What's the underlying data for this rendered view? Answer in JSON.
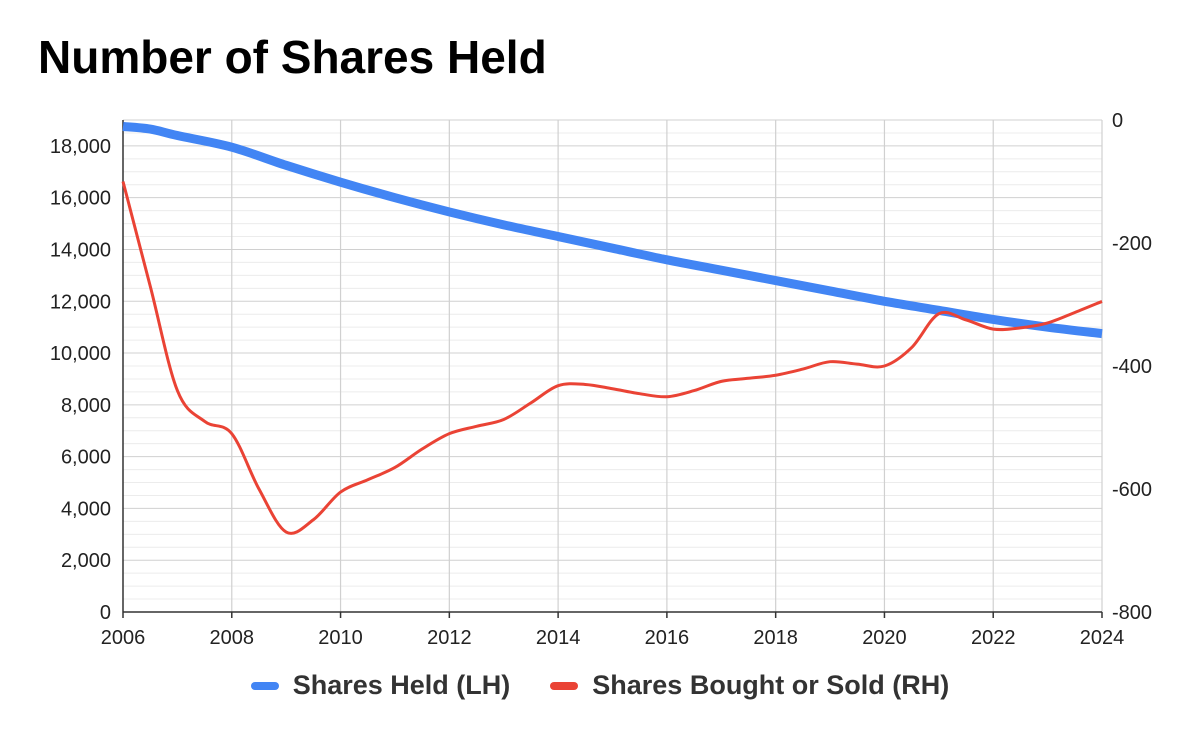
{
  "chart_data": {
    "type": "line",
    "title": "Number of Shares Held",
    "xlabel": "",
    "ylabel": "",
    "x_ticks": [
      "2006",
      "2008",
      "2010",
      "2012",
      "2014",
      "2016",
      "2018",
      "2020",
      "2022",
      "2024"
    ],
    "y_left": {
      "lim": [
        0,
        19000
      ],
      "ticks": [
        0,
        2000,
        4000,
        6000,
        8000,
        10000,
        12000,
        14000,
        16000,
        18000
      ],
      "tick_labels": [
        "0",
        "2,000",
        "4,000",
        "6,000",
        "8,000",
        "10,000",
        "12,000",
        "14,000",
        "16,000",
        "18,000"
      ]
    },
    "y_right": {
      "lim": [
        -800,
        0
      ],
      "ticks": [
        0,
        -200,
        -400,
        -600,
        -800
      ],
      "tick_labels": [
        "0",
        "-200",
        "-400",
        "-600",
        "-800"
      ]
    },
    "xlim": [
      2006,
      2024
    ],
    "grid": true,
    "legend_position": "bottom",
    "series": [
      {
        "name": "Shares Held (LH)",
        "axis": "left",
        "color": "#4285f4",
        "x": [
          2006,
          2006.5,
          2007,
          2008,
          2009,
          2010,
          2011,
          2012,
          2013,
          2014,
          2015,
          2016,
          2017,
          2018,
          2019,
          2020,
          2021,
          2022,
          2023,
          2024
        ],
        "y": [
          18750,
          18650,
          18400,
          17950,
          17250,
          16600,
          16000,
          15450,
          14950,
          14500,
          14050,
          13600,
          13200,
          12800,
          12400,
          12000,
          11650,
          11300,
          11000,
          10750
        ]
      },
      {
        "name": "Shares Bought or Sold (RH)",
        "axis": "right",
        "color": "#ea4335",
        "x": [
          2006,
          2006.5,
          2007,
          2007.5,
          2008,
          2008.5,
          2009,
          2009.5,
          2010,
          2010.5,
          2011,
          2011.5,
          2012,
          2012.5,
          2013,
          2013.5,
          2014,
          2014.5,
          2015,
          2015.5,
          2016,
          2016.5,
          2017,
          2017.5,
          2018,
          2018.5,
          2019,
          2019.5,
          2020,
          2020.5,
          2021,
          2021.5,
          2022,
          2022.5,
          2023,
          2023.5,
          2024
        ],
        "y": [
          -100,
          -270,
          -440,
          -490,
          -510,
          -600,
          -670,
          -650,
          -605,
          -585,
          -565,
          -535,
          -510,
          -498,
          -487,
          -460,
          -432,
          -430,
          -437,
          -445,
          -450,
          -440,
          -425,
          -420,
          -415,
          -405,
          -393,
          -397,
          -400,
          -370,
          -315,
          -325,
          -340,
          -338,
          -330,
          -313,
          -295
        ]
      }
    ]
  }
}
